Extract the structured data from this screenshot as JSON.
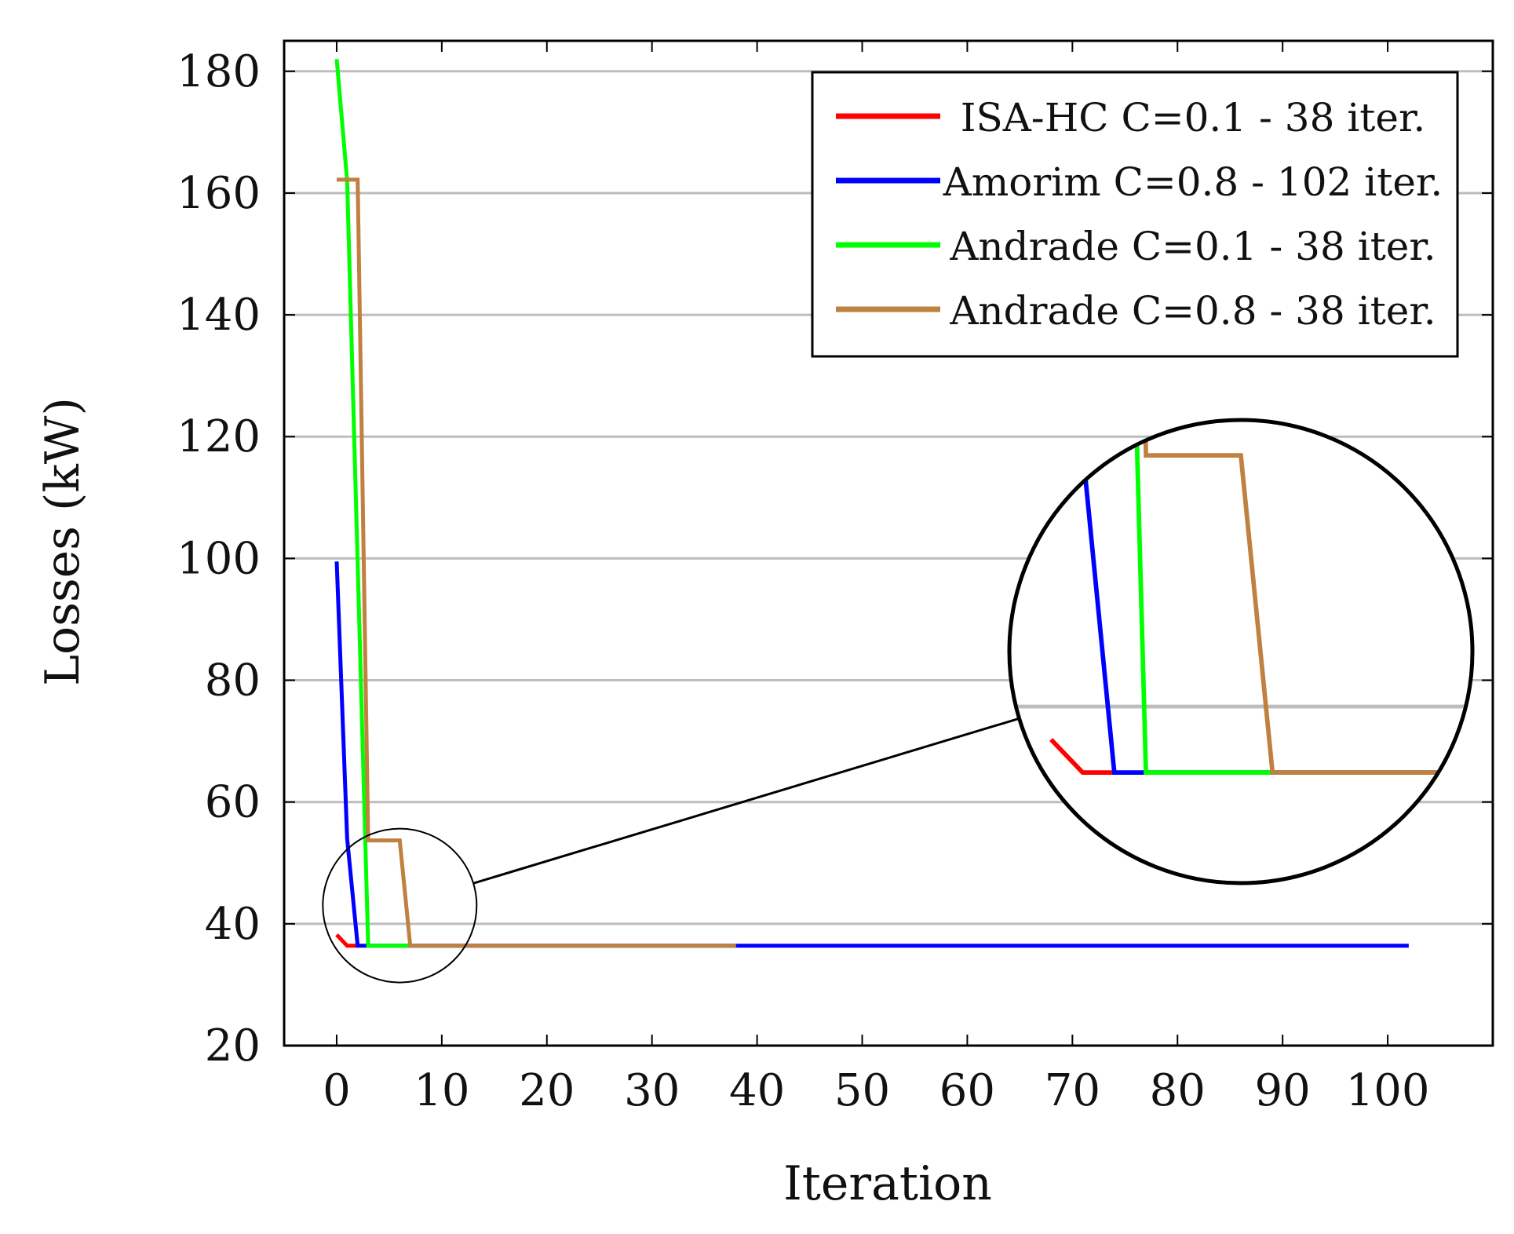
{
  "chart_data": {
    "type": "line",
    "title": "",
    "xlabel": "Iteration",
    "ylabel": "Losses (kW)",
    "xlim": [
      -5,
      110
    ],
    "ylim": [
      20,
      185
    ],
    "xticks": [
      0,
      10,
      20,
      30,
      40,
      50,
      60,
      70,
      80,
      90,
      100
    ],
    "yticks": [
      20,
      40,
      60,
      80,
      100,
      120,
      140,
      160,
      180
    ],
    "grid": "horizontal",
    "legend_position": "top-right",
    "colors": {
      "grid": "#bdbdbd",
      "axis": "#000000"
    },
    "series": [
      {
        "name": "ISA-HC C=0.1 - 38 iter.",
        "color": "#ff0000",
        "points": [
          [
            0,
            38.2
          ],
          [
            1,
            36.4
          ],
          [
            2,
            36.4
          ]
        ]
      },
      {
        "name": "Amorim C=0.8 - 102 iter.",
        "color": "#0000ff",
        "points": [
          [
            0,
            99.5
          ],
          [
            1,
            54
          ],
          [
            2,
            36.4
          ],
          [
            38,
            36.4
          ],
          [
            102,
            36.4
          ]
        ]
      },
      {
        "name": "Andrade C=0.1 - 38 iter.",
        "color": "#00ff00",
        "points": [
          [
            0,
            182
          ],
          [
            1,
            162
          ],
          [
            3,
            36.4
          ],
          [
            7,
            36.4
          ]
        ]
      },
      {
        "name": "Andrade C=0.8 - 38 iter.",
        "color": "#bf8040",
        "points": [
          [
            0,
            162.2
          ],
          [
            2,
            162.2
          ],
          [
            3,
            53.7
          ],
          [
            6,
            53.7
          ],
          [
            7,
            36.4
          ],
          [
            38,
            36.4
          ]
        ]
      }
    ],
    "zoom": {
      "center": [
        6,
        43
      ],
      "radius": 17,
      "magnification": 7.5
    }
  }
}
